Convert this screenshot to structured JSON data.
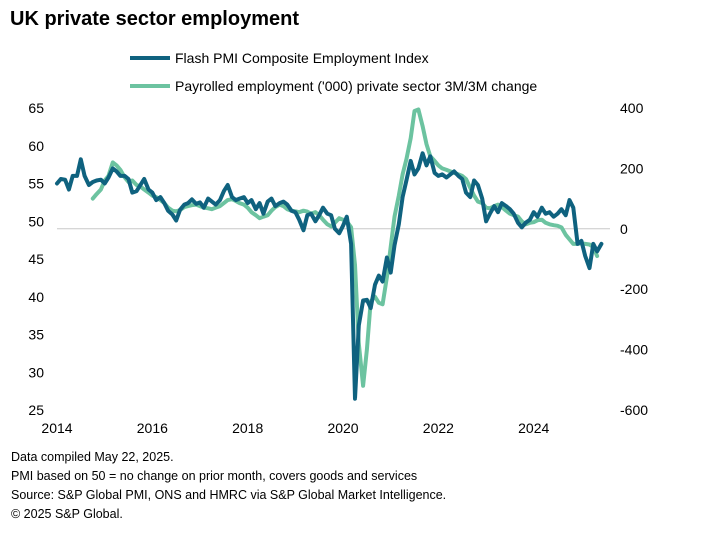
{
  "title": "UK private sector employment",
  "notes": [
    "Data compiled May 22, 2025.",
    "PMI based on 50 = no change on prior month, covers goods and services",
    "Source: S&P Global PMI, ONS and HMRC via S&P Global Market Intelligence.",
    "© 2025 S&P Global."
  ],
  "chart_data": {
    "type": "line",
    "grid": false,
    "legend_position": "top",
    "x_ticks": [
      "2014",
      "2016",
      "2018",
      "2020",
      "2022",
      "2024"
    ],
    "xlim": [
      2014.0,
      2025.6
    ],
    "y_left": {
      "ticks": [
        65,
        60,
        55,
        50,
        45,
        40,
        35,
        30,
        25
      ],
      "ylim": [
        25,
        65
      ]
    },
    "y_right": {
      "ticks": [
        "400",
        "200",
        "0",
        "-200",
        "-400",
        "-600"
      ],
      "ylim": [
        -600,
        400
      ]
    },
    "series": [
      {
        "name": "Flash PMI Composite Employment Index",
        "axis": "left",
        "color": "#0f627f",
        "points": [
          [
            2014.0,
            55.0
          ],
          [
            2014.08,
            55.6
          ],
          [
            2014.17,
            55.5
          ],
          [
            2014.25,
            54.2
          ],
          [
            2014.33,
            56.0
          ],
          [
            2014.42,
            56.0
          ],
          [
            2014.5,
            58.2
          ],
          [
            2014.58,
            56.0
          ],
          [
            2014.67,
            54.8
          ],
          [
            2014.75,
            55.2
          ],
          [
            2014.83,
            55.4
          ],
          [
            2014.92,
            55.5
          ],
          [
            2015.0,
            55.0
          ],
          [
            2015.08,
            55.8
          ],
          [
            2015.17,
            57.0
          ],
          [
            2015.25,
            56.6
          ],
          [
            2015.33,
            56.0
          ],
          [
            2015.42,
            56.0
          ],
          [
            2015.5,
            55.6
          ],
          [
            2015.58,
            53.8
          ],
          [
            2015.67,
            54.0
          ],
          [
            2015.75,
            54.8
          ],
          [
            2015.83,
            55.6
          ],
          [
            2015.92,
            54.2
          ],
          [
            2016.0,
            53.8
          ],
          [
            2016.08,
            52.8
          ],
          [
            2016.17,
            53.2
          ],
          [
            2016.25,
            52.4
          ],
          [
            2016.33,
            51.4
          ],
          [
            2016.42,
            50.9
          ],
          [
            2016.5,
            50.1
          ],
          [
            2016.58,
            51.5
          ],
          [
            2016.67,
            52.2
          ],
          [
            2016.75,
            52.4
          ],
          [
            2016.83,
            52.9
          ],
          [
            2016.92,
            52.3
          ],
          [
            2017.0,
            52.5
          ],
          [
            2017.08,
            51.8
          ],
          [
            2017.17,
            53.0
          ],
          [
            2017.25,
            52.6
          ],
          [
            2017.33,
            52.2
          ],
          [
            2017.42,
            52.8
          ],
          [
            2017.5,
            54.0
          ],
          [
            2017.58,
            54.8
          ],
          [
            2017.67,
            53.2
          ],
          [
            2017.75,
            52.8
          ],
          [
            2017.83,
            53.0
          ],
          [
            2017.92,
            53.2
          ],
          [
            2018.0,
            52.4
          ],
          [
            2018.08,
            52.8
          ],
          [
            2018.17,
            51.6
          ],
          [
            2018.25,
            52.4
          ],
          [
            2018.33,
            51.0
          ],
          [
            2018.42,
            52.6
          ],
          [
            2018.5,
            53.0
          ],
          [
            2018.58,
            52.0
          ],
          [
            2018.67,
            52.4
          ],
          [
            2018.75,
            52.6
          ],
          [
            2018.83,
            52.2
          ],
          [
            2018.92,
            51.4
          ],
          [
            2019.0,
            51.2
          ],
          [
            2019.08,
            50.2
          ],
          [
            2019.17,
            48.8
          ],
          [
            2019.25,
            50.8
          ],
          [
            2019.33,
            51.0
          ],
          [
            2019.42,
            50.0
          ],
          [
            2019.5,
            50.8
          ],
          [
            2019.58,
            51.8
          ],
          [
            2019.67,
            51.0
          ],
          [
            2019.75,
            50.8
          ],
          [
            2019.83,
            49.0
          ],
          [
            2019.92,
            48.4
          ],
          [
            2020.0,
            49.4
          ],
          [
            2020.08,
            50.6
          ],
          [
            2020.17,
            47.0
          ],
          [
            2020.25,
            26.5
          ],
          [
            2020.33,
            36.2
          ],
          [
            2020.42,
            39.5
          ],
          [
            2020.5,
            39.6
          ],
          [
            2020.58,
            38.5
          ],
          [
            2020.67,
            41.6
          ],
          [
            2020.75,
            42.8
          ],
          [
            2020.83,
            42.0
          ],
          [
            2020.92,
            45.2
          ],
          [
            2021.0,
            43.2
          ],
          [
            2021.08,
            46.8
          ],
          [
            2021.17,
            49.6
          ],
          [
            2021.25,
            53.2
          ],
          [
            2021.33,
            55.4
          ],
          [
            2021.42,
            58.0
          ],
          [
            2021.5,
            56.2
          ],
          [
            2021.58,
            57.0
          ],
          [
            2021.67,
            59.0
          ],
          [
            2021.75,
            57.4
          ],
          [
            2021.83,
            58.6
          ],
          [
            2021.92,
            56.4
          ],
          [
            2022.0,
            56.0
          ],
          [
            2022.08,
            56.2
          ],
          [
            2022.17,
            55.8
          ],
          [
            2022.25,
            56.2
          ],
          [
            2022.33,
            56.6
          ],
          [
            2022.42,
            56.0
          ],
          [
            2022.5,
            55.6
          ],
          [
            2022.58,
            53.8
          ],
          [
            2022.67,
            53.2
          ],
          [
            2022.75,
            55.4
          ],
          [
            2022.83,
            54.8
          ],
          [
            2022.92,
            53.0
          ],
          [
            2023.0,
            50.0
          ],
          [
            2023.08,
            51.0
          ],
          [
            2023.17,
            52.0
          ],
          [
            2023.25,
            51.2
          ],
          [
            2023.33,
            52.4
          ],
          [
            2023.42,
            52.0
          ],
          [
            2023.5,
            51.6
          ],
          [
            2023.58,
            51.0
          ],
          [
            2023.67,
            49.8
          ],
          [
            2023.75,
            49.2
          ],
          [
            2023.83,
            49.8
          ],
          [
            2023.92,
            50.2
          ],
          [
            2024.0,
            51.2
          ],
          [
            2024.08,
            50.6
          ],
          [
            2024.17,
            51.8
          ],
          [
            2024.25,
            51.0
          ],
          [
            2024.33,
            51.2
          ],
          [
            2024.42,
            50.6
          ],
          [
            2024.5,
            51.0
          ],
          [
            2024.58,
            51.6
          ],
          [
            2024.67,
            50.8
          ],
          [
            2024.75,
            52.8
          ],
          [
            2024.83,
            51.8
          ],
          [
            2024.92,
            47.0
          ],
          [
            2025.0,
            47.4
          ],
          [
            2025.08,
            45.4
          ],
          [
            2025.17,
            43.8
          ],
          [
            2025.25,
            47.0
          ],
          [
            2025.33,
            46.0
          ],
          [
            2025.42,
            47.0
          ]
        ]
      },
      {
        "name": "Payrolled employment ('000) private sector 3M/3M change",
        "axis": "right",
        "color": "#6cc3a0",
        "points": [
          [
            2014.75,
            100
          ],
          [
            2014.83,
            115
          ],
          [
            2014.92,
            130
          ],
          [
            2015.0,
            160
          ],
          [
            2015.08,
            175
          ],
          [
            2015.17,
            220
          ],
          [
            2015.25,
            210
          ],
          [
            2015.33,
            195
          ],
          [
            2015.42,
            170
          ],
          [
            2015.5,
            155
          ],
          [
            2015.58,
            160
          ],
          [
            2015.67,
            145
          ],
          [
            2015.75,
            140
          ],
          [
            2015.83,
            130
          ],
          [
            2015.92,
            120
          ],
          [
            2016.0,
            110
          ],
          [
            2016.08,
            105
          ],
          [
            2016.17,
            95
          ],
          [
            2016.25,
            85
          ],
          [
            2016.33,
            70
          ],
          [
            2016.42,
            60
          ],
          [
            2016.5,
            58
          ],
          [
            2016.58,
            62
          ],
          [
            2016.67,
            72
          ],
          [
            2016.75,
            75
          ],
          [
            2016.83,
            78
          ],
          [
            2016.92,
            80
          ],
          [
            2017.0,
            75
          ],
          [
            2017.08,
            70
          ],
          [
            2017.17,
            68
          ],
          [
            2017.25,
            65
          ],
          [
            2017.33,
            70
          ],
          [
            2017.42,
            75
          ],
          [
            2017.5,
            85
          ],
          [
            2017.58,
            95
          ],
          [
            2017.67,
            98
          ],
          [
            2017.75,
            92
          ],
          [
            2017.83,
            85
          ],
          [
            2017.92,
            80
          ],
          [
            2018.0,
            70
          ],
          [
            2018.08,
            55
          ],
          [
            2018.17,
            45
          ],
          [
            2018.25,
            35
          ],
          [
            2018.33,
            40
          ],
          [
            2018.42,
            45
          ],
          [
            2018.5,
            60
          ],
          [
            2018.58,
            72
          ],
          [
            2018.67,
            80
          ],
          [
            2018.75,
            75
          ],
          [
            2018.83,
            65
          ],
          [
            2018.92,
            60
          ],
          [
            2019.0,
            58
          ],
          [
            2019.08,
            55
          ],
          [
            2019.17,
            60
          ],
          [
            2019.25,
            57
          ],
          [
            2019.33,
            50
          ],
          [
            2019.42,
            55
          ],
          [
            2019.5,
            45
          ],
          [
            2019.58,
            30
          ],
          [
            2019.67,
            15
          ],
          [
            2019.75,
            8
          ],
          [
            2019.83,
            20
          ],
          [
            2019.92,
            35
          ],
          [
            2020.0,
            30
          ],
          [
            2020.08,
            25
          ],
          [
            2020.17,
            5
          ],
          [
            2020.25,
            -120
          ],
          [
            2020.33,
            -380
          ],
          [
            2020.42,
            -520
          ],
          [
            2020.5,
            -400
          ],
          [
            2020.58,
            -240
          ],
          [
            2020.67,
            -225
          ],
          [
            2020.75,
            -245
          ],
          [
            2020.83,
            -250
          ],
          [
            2020.92,
            -160
          ],
          [
            2021.0,
            -60
          ],
          [
            2021.08,
            40
          ],
          [
            2021.17,
            110
          ],
          [
            2021.25,
            180
          ],
          [
            2021.33,
            230
          ],
          [
            2021.42,
            300
          ],
          [
            2021.5,
            390
          ],
          [
            2021.58,
            395
          ],
          [
            2021.67,
            340
          ],
          [
            2021.75,
            280
          ],
          [
            2021.83,
            240
          ],
          [
            2021.92,
            225
          ],
          [
            2022.0,
            210
          ],
          [
            2022.08,
            200
          ],
          [
            2022.17,
            195
          ],
          [
            2022.25,
            190
          ],
          [
            2022.33,
            185
          ],
          [
            2022.42,
            180
          ],
          [
            2022.5,
            175
          ],
          [
            2022.58,
            165
          ],
          [
            2022.67,
            135
          ],
          [
            2022.75,
            110
          ],
          [
            2022.83,
            90
          ],
          [
            2022.92,
            85
          ],
          [
            2023.0,
            70
          ],
          [
            2023.08,
            68
          ],
          [
            2023.17,
            75
          ],
          [
            2023.25,
            80
          ],
          [
            2023.33,
            72
          ],
          [
            2023.42,
            60
          ],
          [
            2023.5,
            50
          ],
          [
            2023.58,
            45
          ],
          [
            2023.67,
            40
          ],
          [
            2023.75,
            25
          ],
          [
            2023.83,
            15
          ],
          [
            2023.92,
            20
          ],
          [
            2024.0,
            22
          ],
          [
            2024.08,
            28
          ],
          [
            2024.17,
            30
          ],
          [
            2024.25,
            20
          ],
          [
            2024.33,
            15
          ],
          [
            2024.42,
            12
          ],
          [
            2024.5,
            10
          ],
          [
            2024.58,
            5
          ],
          [
            2024.67,
            -20
          ],
          [
            2024.75,
            -35
          ],
          [
            2024.83,
            -50
          ],
          [
            2024.92,
            -50
          ],
          [
            2025.0,
            -48
          ],
          [
            2025.08,
            -50
          ],
          [
            2025.17,
            -52
          ],
          [
            2025.25,
            -60
          ],
          [
            2025.33,
            -90
          ]
        ]
      }
    ]
  }
}
